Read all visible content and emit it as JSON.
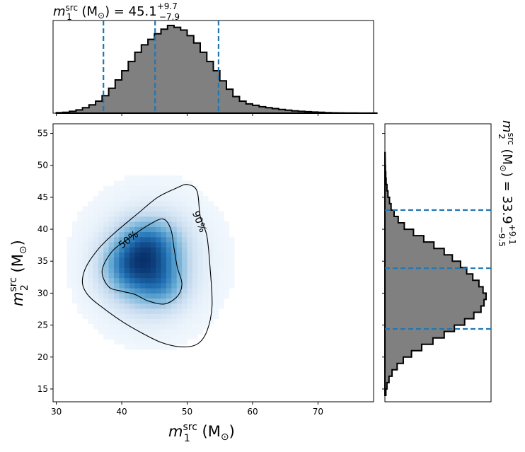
{
  "chart_data": {
    "type": "corner-plot",
    "top_title": {
      "param": "m",
      "sup": "src",
      "sub": "1",
      "unit": " (M",
      "unit_sub": "⊙",
      "unit_close": ") = ",
      "value": "45.1",
      "plus": "+9.7",
      "minus": "−7.9"
    },
    "right_title": {
      "param": "m",
      "sup": "src",
      "sub": "2",
      "unit": " (M",
      "unit_sub": "⊙",
      "unit_close": ") = ",
      "value": "33.9",
      "plus": "+9.1",
      "minus": "−9.5"
    },
    "xlabel": {
      "param": "m",
      "sup": "src",
      "sub": "1",
      "unit": " (M",
      "unit_sub": "⊙",
      "unit_close": ")"
    },
    "ylabel": {
      "param": "m",
      "sup": "src",
      "sub": "2",
      "unit": " (M",
      "unit_sub": "⊙",
      "unit_close": ")"
    },
    "xlim": [
      29.5,
      78.5
    ],
    "ylim": [
      13,
      56.5
    ],
    "xticks": [
      "30",
      "40",
      "50",
      "60",
      "70"
    ],
    "yticks": [
      "15",
      "20",
      "25",
      "30",
      "35",
      "40",
      "45",
      "50",
      "55"
    ],
    "colors": {
      "hist_fill": "#808080",
      "hist_edge": "#000000",
      "quantile": "#1f77b4",
      "density": "#08306b"
    },
    "m1_quantiles": [
      37.2,
      45.1,
      54.8
    ],
    "m2_quantiles": [
      24.4,
      33.9,
      43.0
    ],
    "contour_levels": [
      "50%",
      "90%"
    ],
    "m1_hist": {
      "bin_start": 30,
      "bin_width": 1,
      "counts": [
        0.005,
        0.01,
        0.02,
        0.035,
        0.06,
        0.09,
        0.13,
        0.19,
        0.27,
        0.36,
        0.46,
        0.56,
        0.66,
        0.74,
        0.8,
        0.86,
        0.91,
        0.95,
        0.93,
        0.9,
        0.84,
        0.76,
        0.66,
        0.56,
        0.46,
        0.35,
        0.26,
        0.18,
        0.13,
        0.1,
        0.085,
        0.07,
        0.06,
        0.05,
        0.04,
        0.032,
        0.025,
        0.02,
        0.016,
        0.012,
        0.009,
        0.006,
        0.004,
        0.003,
        0.002,
        0.002,
        0.001,
        0.001,
        0.0005
      ]
    },
    "m2_hist": {
      "bin_start": 14,
      "bin_width": 1,
      "counts": [
        0.01,
        0.02,
        0.04,
        0.07,
        0.12,
        0.18,
        0.26,
        0.36,
        0.47,
        0.58,
        0.68,
        0.78,
        0.87,
        0.94,
        0.97,
        0.99,
        0.96,
        0.92,
        0.86,
        0.8,
        0.74,
        0.66,
        0.58,
        0.48,
        0.38,
        0.28,
        0.19,
        0.13,
        0.09,
        0.06,
        0.045,
        0.03,
        0.02,
        0.012,
        0.008,
        0.005,
        0.003,
        0.002
      ]
    },
    "contour_50": [
      [
        38,
        31
      ],
      [
        37,
        33.5
      ],
      [
        38.5,
        36.5
      ],
      [
        41,
        38.5
      ],
      [
        44,
        40.6
      ],
      [
        46.3,
        41.6
      ],
      [
        47.5,
        40
      ],
      [
        48,
        37
      ],
      [
        48.5,
        34
      ],
      [
        49.2,
        31.5
      ],
      [
        48.5,
        29.5
      ],
      [
        46.5,
        28.3
      ],
      [
        44,
        28.8
      ],
      [
        42,
        29.8
      ],
      [
        40,
        30.3
      ],
      [
        38,
        31
      ]
    ],
    "contour_90": [
      [
        34,
        31.5
      ],
      [
        34.5,
        34
      ],
      [
        36.5,
        37
      ],
      [
        39,
        39.5
      ],
      [
        42.5,
        42.5
      ],
      [
        45.5,
        45
      ],
      [
        48.5,
        46.5
      ],
      [
        50,
        47
      ],
      [
        51.5,
        46
      ],
      [
        52,
        42
      ],
      [
        53,
        39
      ],
      [
        53.5,
        34
      ],
      [
        53.8,
        28
      ],
      [
        53,
        24
      ],
      [
        51.5,
        22
      ],
      [
        49,
        21.6
      ],
      [
        46,
        22.3
      ],
      [
        43,
        23.8
      ],
      [
        40,
        25.6
      ],
      [
        37,
        27.8
      ],
      [
        35,
        29.5
      ],
      [
        34,
        31.5
      ]
    ],
    "density_blobs": [
      {
        "x": 43.5,
        "y": 33.3,
        "sx": 3.3,
        "sy": 3.6,
        "w": 1.0
      },
      {
        "x": 40.5,
        "y": 34.6,
        "sx": 2.6,
        "sy": 2.8,
        "w": 0.75
      },
      {
        "x": 46.0,
        "y": 37.0,
        "sx": 2.8,
        "sy": 3.1,
        "w": 0.7
      },
      {
        "x": 43.0,
        "y": 38.5,
        "sx": 2.6,
        "sy": 2.4,
        "w": 0.55
      },
      {
        "x": 46.5,
        "y": 31.2,
        "sx": 2.4,
        "sy": 2.4,
        "w": 0.5
      },
      {
        "x": 44.5,
        "y": 35.0,
        "sx": 7.0,
        "sy": 7.5,
        "w": 0.18
      }
    ]
  }
}
